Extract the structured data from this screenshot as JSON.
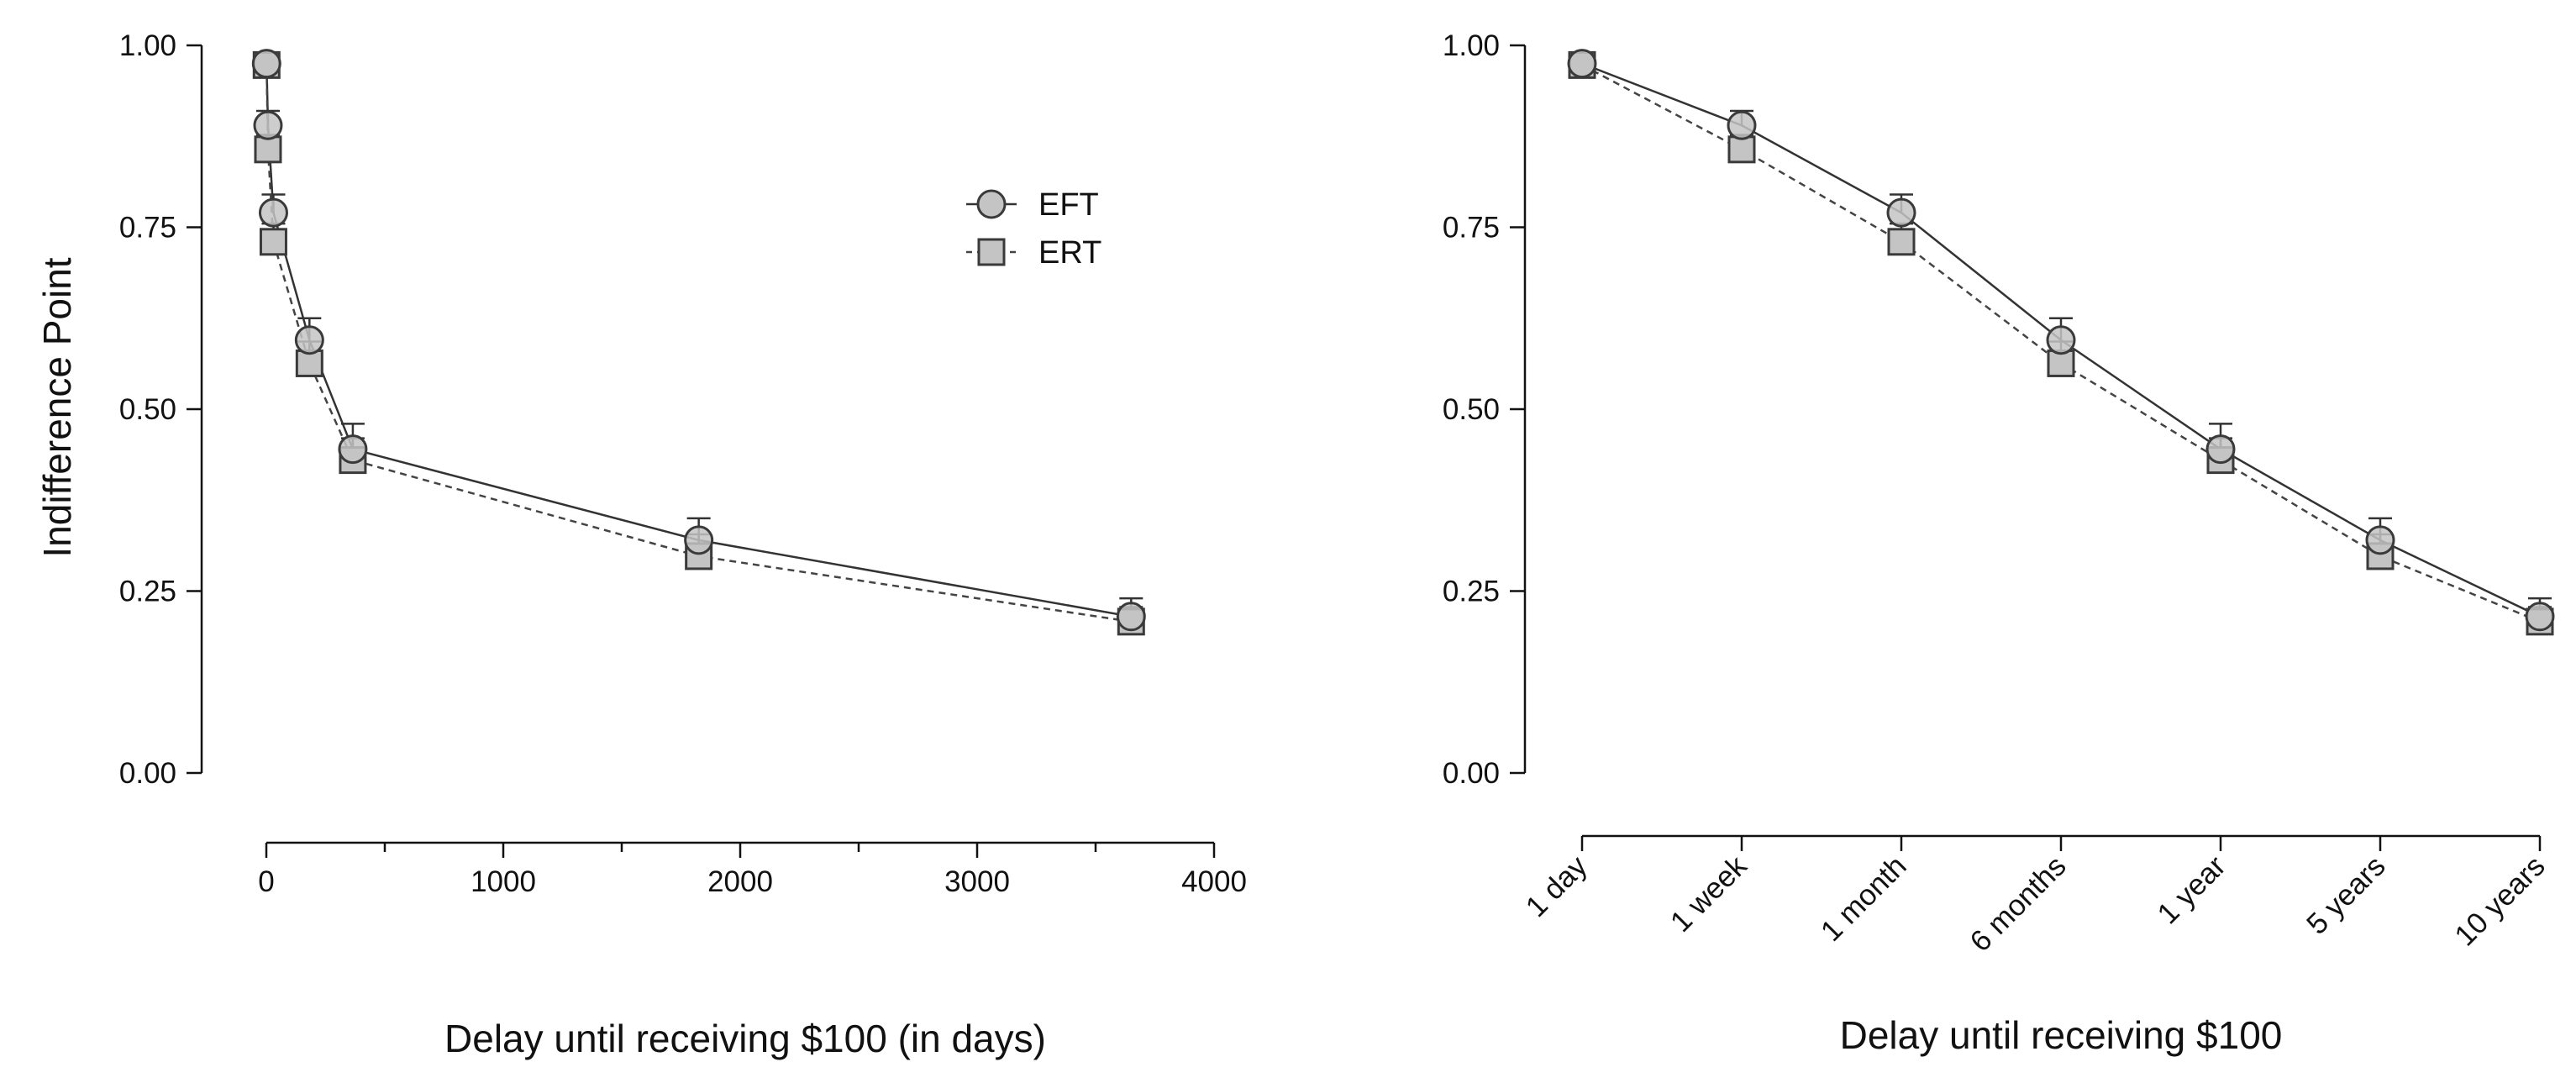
{
  "y_axis_title": "Indifference Point",
  "legend": [
    {
      "label": "EFT",
      "marker": "circle",
      "line": "solid"
    },
    {
      "label": "ERT",
      "marker": "square",
      "line": "dashed"
    }
  ],
  "colors": {
    "eft_line": "#333333",
    "ert_line": "#444444",
    "marker_fill": "#c4c4c4",
    "marker_stroke": "#3a3a3a",
    "axis": "#111111"
  },
  "chart_data": [
    {
      "type": "line",
      "xlabel": "Delay until receiving $100 (in days)",
      "ylabel": "Indifference Point",
      "x_scale": "linear",
      "xlim": [
        0,
        4000
      ],
      "ylim": [
        0,
        1
      ],
      "x_ticks": [
        "0",
        "1000",
        "2000",
        "3000",
        "4000"
      ],
      "y_ticks": [
        "0.00",
        "0.25",
        "0.50",
        "0.75",
        "1.00"
      ],
      "legend_position": "top-right",
      "grid": false,
      "x": [
        1,
        7,
        30,
        182,
        365,
        1825,
        3650
      ],
      "series": [
        {
          "name": "EFT",
          "values": [
            0.975,
            0.89,
            0.77,
            0.595,
            0.445,
            0.32,
            0.215
          ],
          "errors": [
            0.01,
            0.02,
            0.025,
            0.03,
            0.035,
            0.03,
            0.025
          ]
        },
        {
          "name": "ERT",
          "values": [
            0.973,
            0.857,
            0.73,
            0.563,
            0.43,
            0.298,
            0.208
          ],
          "errors": [
            0.01,
            0.02,
            0.025,
            0.03,
            0.03,
            0.03,
            0.02
          ]
        }
      ]
    },
    {
      "type": "line",
      "xlabel": "Delay until receiving $100",
      "ylabel": "",
      "x_scale": "categorical",
      "categories": [
        "1 day",
        "1 week",
        "1 month",
        "6 months",
        "1 year",
        "5 years",
        "10 years"
      ],
      "ylim": [
        0,
        1
      ],
      "y_ticks": [
        "0.00",
        "0.25",
        "0.50",
        "0.75",
        "1.00"
      ],
      "grid": false,
      "series": [
        {
          "name": "EFT",
          "values": [
            0.975,
            0.89,
            0.77,
            0.595,
            0.445,
            0.32,
            0.215
          ],
          "errors": [
            0.01,
            0.02,
            0.025,
            0.03,
            0.035,
            0.03,
            0.025
          ]
        },
        {
          "name": "ERT",
          "values": [
            0.973,
            0.857,
            0.73,
            0.563,
            0.43,
            0.298,
            0.208
          ],
          "errors": [
            0.01,
            0.02,
            0.025,
            0.03,
            0.03,
            0.03,
            0.02
          ]
        }
      ]
    }
  ]
}
